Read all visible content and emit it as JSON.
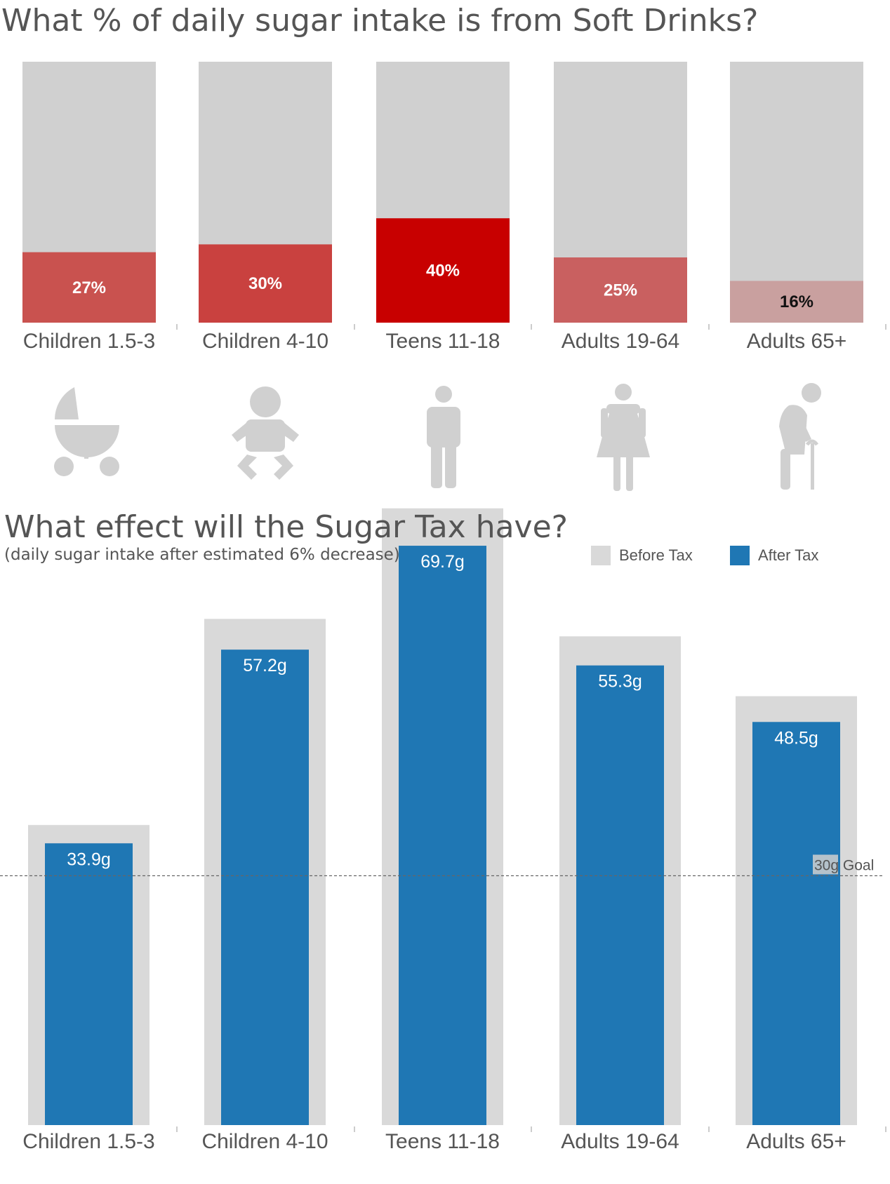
{
  "chart_data": [
    {
      "type": "bar",
      "title": "What % of daily sugar intake is from Soft Drinks?",
      "categories": [
        "Children 1.5-3",
        "Children 4-10",
        "Teens 11-18",
        "Adults 19-64",
        "Adults 65+"
      ],
      "values": [
        27,
        30,
        40,
        25,
        16
      ],
      "value_labels": [
        "27%",
        "30%",
        "40%",
        "25%",
        "16%"
      ],
      "ylim": [
        0,
        100
      ],
      "grid": false,
      "colors": [
        "#c9524f",
        "#c9413f",
        "#c80000",
        "#c96060",
        "#c9a09f"
      ],
      "background_color": "#d0d0d0",
      "icons": [
        "stroller-icon",
        "baby-icon",
        "teen-person-icon",
        "woman-icon",
        "elderly-person-icon"
      ]
    },
    {
      "type": "bar",
      "title": "What effect will the Sugar Tax have?",
      "subtitle": "(daily sugar intake after estimated 6% decrease)",
      "categories": [
        "Children 1.5-3",
        "Children 4-10",
        "Teens 11-18",
        "Adults 19-64",
        "Adults 65+"
      ],
      "series": [
        {
          "name": "Before Tax",
          "values": [
            36.1,
            60.9,
            74.2,
            58.8,
            51.6
          ],
          "color": "#d9d9d9"
        },
        {
          "name": "After Tax",
          "values": [
            33.9,
            57.2,
            69.7,
            55.3,
            48.5
          ],
          "color": "#1f77b4"
        }
      ],
      "value_labels": [
        "33.9g",
        "57.2g",
        "69.7g",
        "55.3g",
        "48.5g"
      ],
      "reference_line": {
        "value": 30,
        "label": "30g Goal"
      },
      "ylim": [
        0,
        84
      ],
      "grid": false,
      "legend": "top-right"
    }
  ]
}
